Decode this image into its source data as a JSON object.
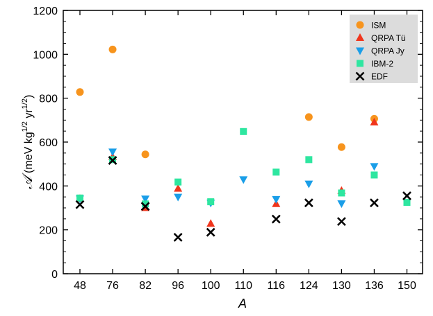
{
  "chart_data": {
    "type": "scatter",
    "categories": [
      "48",
      "76",
      "82",
      "96",
      "100",
      "110",
      "116",
      "124",
      "130",
      "136",
      "150"
    ],
    "ylim": [
      0,
      1200
    ],
    "yticks": [
      0,
      200,
      400,
      600,
      800,
      1000,
      1200
    ],
    "xlabel": "A",
    "ylabel": {
      "script": "𝒜",
      "prefix": " (meV kg",
      "sup1": "1/2",
      "mid": " yr",
      "sup2": "1/2",
      "suffix": ")"
    },
    "legend_position": "top-right",
    "grid": false,
    "series": [
      {
        "name": "ISM",
        "marker": "circle",
        "color": "#f7941d",
        "points": [
          [
            "48",
            828
          ],
          [
            "76",
            1022
          ],
          [
            "82",
            544
          ],
          [
            "124",
            714
          ],
          [
            "130",
            577
          ],
          [
            "136",
            706
          ]
        ]
      },
      {
        "name": "QRPA Tü",
        "marker": "triangle-up",
        "color": "#f0351c",
        "points": [
          [
            "48",
            342
          ],
          [
            "76",
            532
          ],
          [
            "82",
            300
          ],
          [
            "96",
            388
          ],
          [
            "100",
            228
          ],
          [
            "116",
            318
          ],
          [
            "130",
            378
          ],
          [
            "136",
            690
          ]
        ]
      },
      {
        "name": "QRPA Jy",
        "marker": "triangle-down",
        "color": "#1a9ee8",
        "points": [
          [
            "48",
            342
          ],
          [
            "76",
            556
          ],
          [
            "82",
            342
          ],
          [
            "96",
            350
          ],
          [
            "100",
            323
          ],
          [
            "110",
            430
          ],
          [
            "116",
            340
          ],
          [
            "124",
            410
          ],
          [
            "130",
            320
          ],
          [
            "136",
            490
          ]
        ]
      },
      {
        "name": "IBM-2",
        "marker": "square",
        "color": "#2ee6a0",
        "points": [
          [
            "48",
            345
          ],
          [
            "76",
            520
          ],
          [
            "82",
            318
          ],
          [
            "96",
            418
          ],
          [
            "100",
            328
          ],
          [
            "110",
            648
          ],
          [
            "116",
            463
          ],
          [
            "124",
            520
          ],
          [
            "130",
            368
          ],
          [
            "136",
            450
          ],
          [
            "150",
            325
          ]
        ]
      },
      {
        "name": "EDF",
        "marker": "cross",
        "color": "#000000",
        "points": [
          [
            "48",
            315
          ],
          [
            "76",
            516
          ],
          [
            "82",
            307
          ],
          [
            "96",
            166
          ],
          [
            "100",
            189
          ],
          [
            "116",
            249
          ],
          [
            "124",
            323
          ],
          [
            "130",
            238
          ],
          [
            "136",
            323
          ],
          [
            "150",
            355
          ]
        ]
      }
    ]
  }
}
